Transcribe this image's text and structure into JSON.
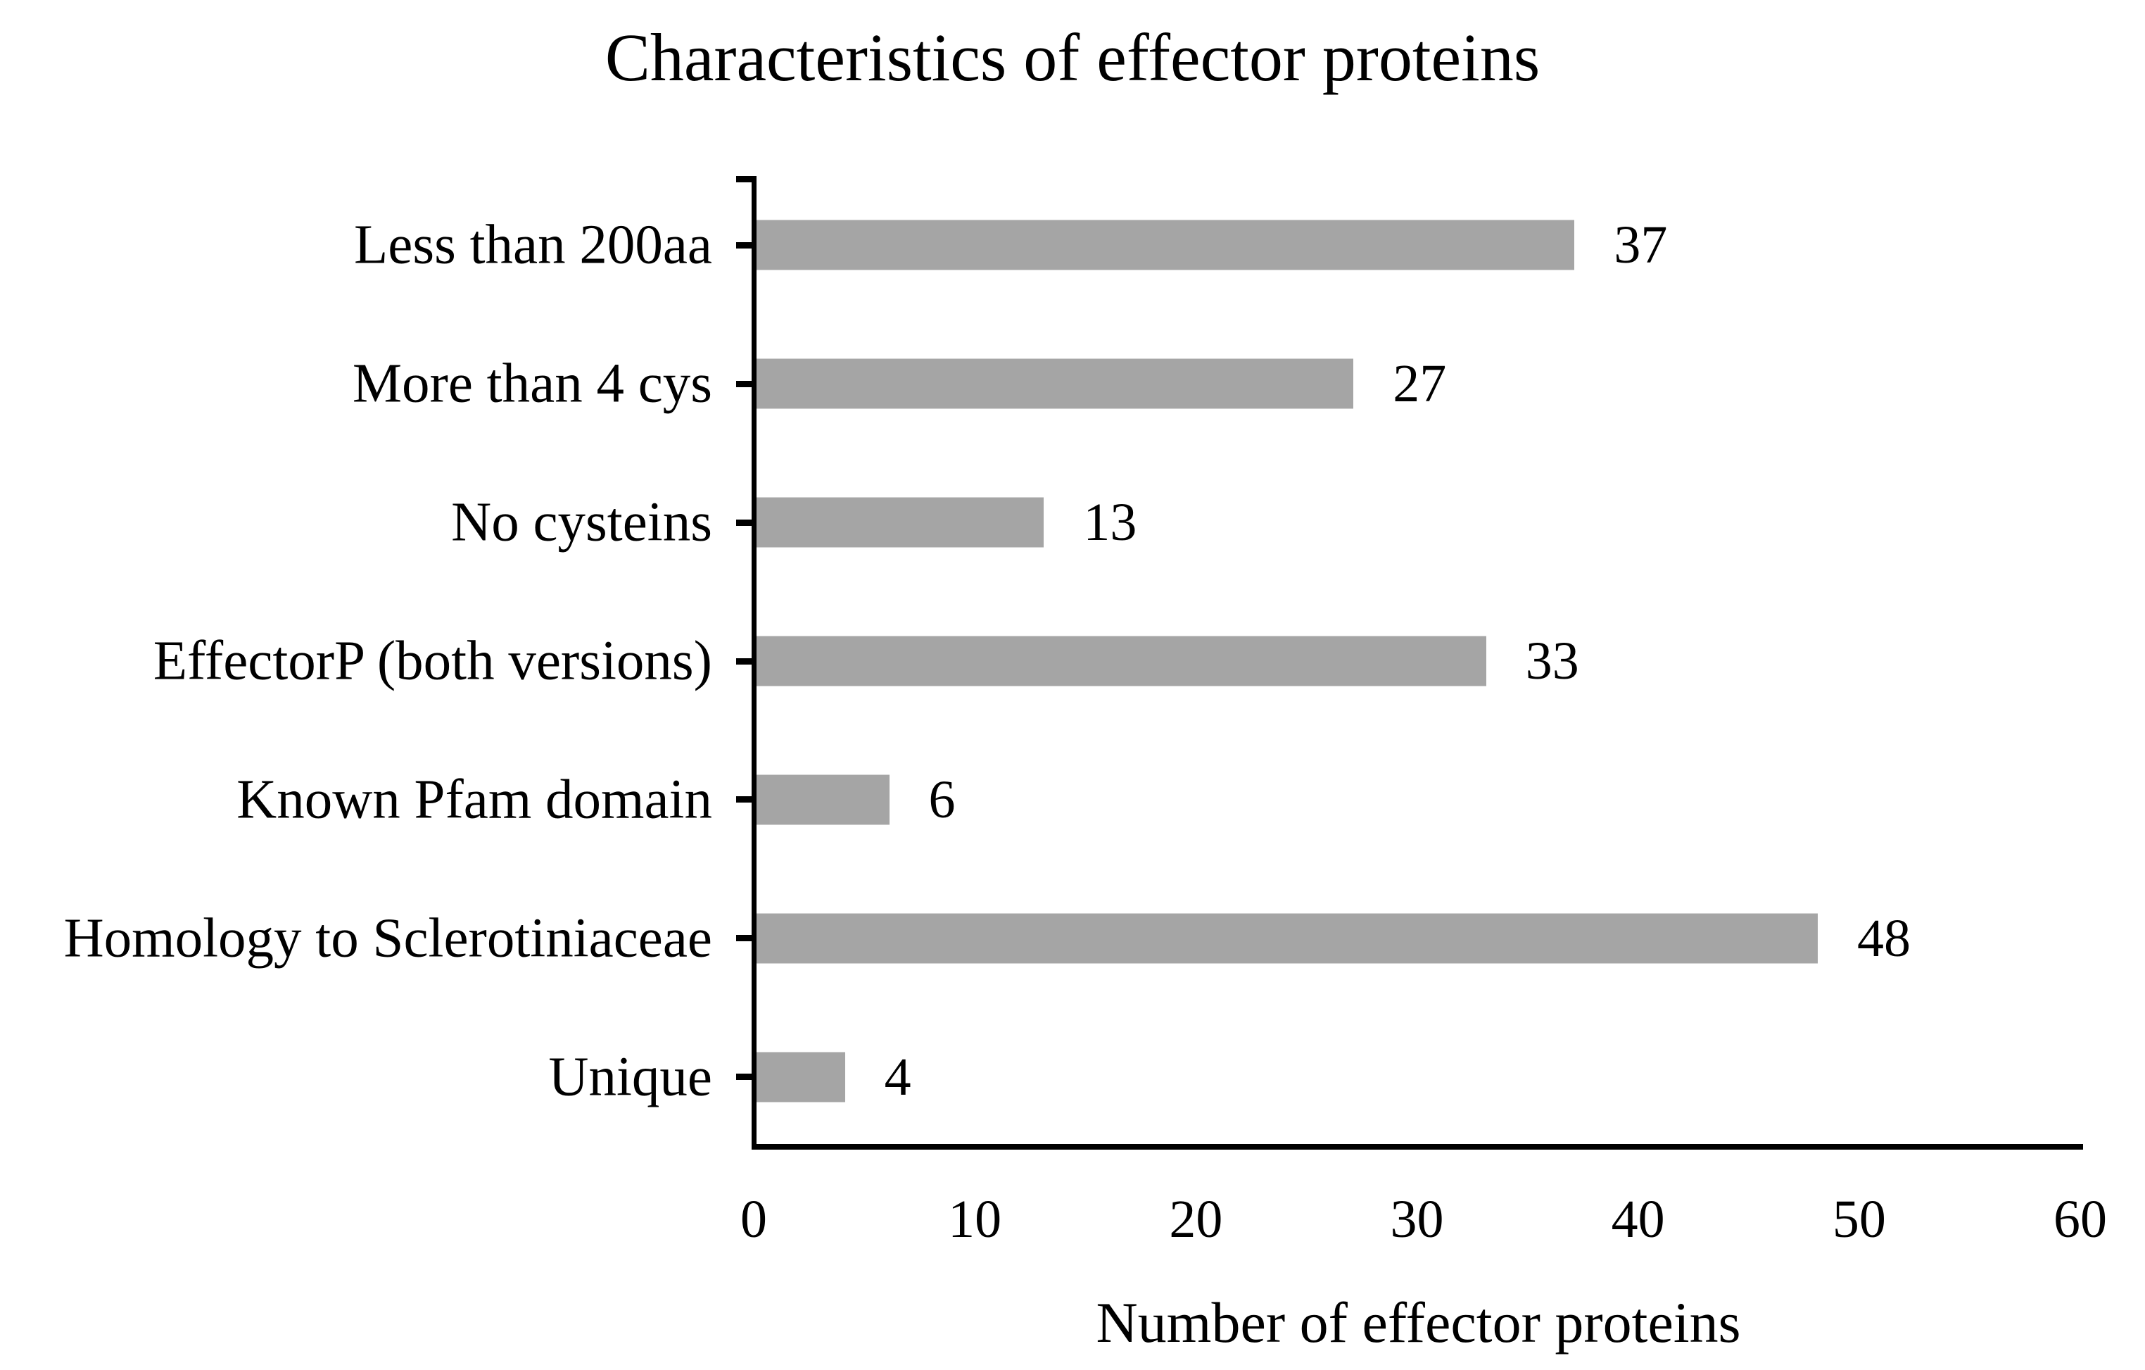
{
  "chart_data": {
    "type": "bar",
    "orientation": "horizontal",
    "title": "Characteristics of effector proteins",
    "categories": [
      "Less than 200aa",
      "More than 4 cys",
      "No cysteins",
      "EffectorP (both versions)",
      "Known Pfam domain",
      "Homology to Sclerotiniaceae",
      "Unique"
    ],
    "values": [
      37,
      27,
      13,
      33,
      6,
      48,
      4
    ],
    "value_labels": [
      "37",
      "27",
      "13",
      "33",
      "6",
      "48",
      "4"
    ],
    "xlabel": "Number of effector proteins",
    "xlim": [
      0,
      60
    ],
    "xticks": [
      "0",
      "10",
      "20",
      "30",
      "40",
      "50",
      "60"
    ],
    "xtick_values": [
      0,
      10,
      20,
      30,
      40,
      50,
      60
    ],
    "grid": false,
    "legend": false,
    "bar_color": "#a5a5a5",
    "axis_color": "#000000",
    "background_color": "#ffffff"
  }
}
